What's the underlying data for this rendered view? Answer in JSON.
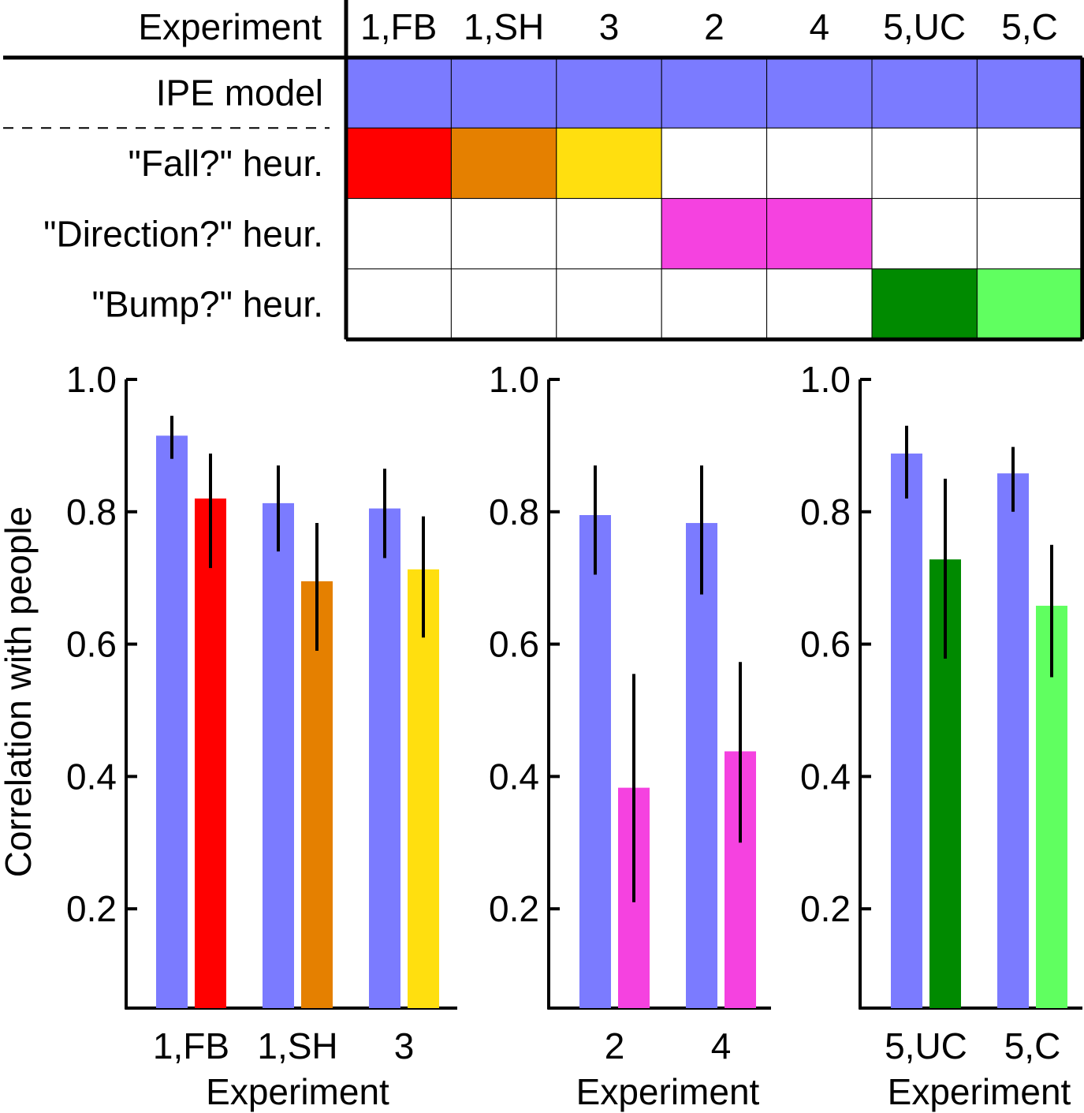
{
  "legend_table": {
    "header_label": "Experiment",
    "columns": [
      "1,FB",
      "1,SH",
      "3",
      "2",
      "4",
      "5,UC",
      "5,C"
    ],
    "rows": [
      {
        "label": "IPE model",
        "cells": [
          "#7b7bff",
          "#7b7bff",
          "#7b7bff",
          "#7b7bff",
          "#7b7bff",
          "#7b7bff",
          "#7b7bff"
        ]
      },
      {
        "label": "\"Fall?\" heur.",
        "cells": [
          "#ff0000",
          "#e58000",
          "#ffdf0f",
          "#ffffff",
          "#ffffff",
          "#ffffff",
          "#ffffff"
        ]
      },
      {
        "label": "\"Direction?\" heur.",
        "cells": [
          "#ffffff",
          "#ffffff",
          "#ffffff",
          "#f542e0",
          "#f542e0",
          "#ffffff",
          "#ffffff"
        ]
      },
      {
        "label": "\"Bump?\" heur.",
        "cells": [
          "#ffffff",
          "#ffffff",
          "#ffffff",
          "#ffffff",
          "#ffffff",
          "#008a00",
          "#60ff60"
        ]
      }
    ]
  },
  "chart_data": [
    {
      "type": "bar",
      "ylabel": "Correlation with people",
      "xlabel": "Experiment",
      "ylim": [
        0.05,
        1.0
      ],
      "yticks": [
        "1.0",
        "0.8",
        "0.6",
        "0.4",
        "0.2"
      ],
      "categories": [
        "1,FB",
        "1,SH",
        "3"
      ],
      "series": [
        {
          "values": [
            0.915,
            0.813,
            0.805
          ],
          "err_low": [
            0.88,
            0.74,
            0.73
          ],
          "err_high": [
            0.945,
            0.87,
            0.865
          ],
          "colors": [
            "#7b7bff",
            "#7b7bff",
            "#7b7bff"
          ]
        },
        {
          "values": [
            0.82,
            0.695,
            0.713
          ],
          "err_low": [
            0.715,
            0.59,
            0.61
          ],
          "err_high": [
            0.888,
            0.783,
            0.793
          ],
          "colors": [
            "#ff0000",
            "#e58000",
            "#ffdf0f"
          ]
        }
      ]
    },
    {
      "type": "bar",
      "ylabel": "",
      "xlabel": "Experiment",
      "ylim": [
        0.05,
        1.0
      ],
      "yticks": [
        "1.0",
        "0.8",
        "0.6",
        "0.4",
        "0.2"
      ],
      "categories": [
        "2",
        "4"
      ],
      "series": [
        {
          "values": [
            0.795,
            0.783
          ],
          "err_low": [
            0.705,
            0.675
          ],
          "err_high": [
            0.87,
            0.87
          ],
          "colors": [
            "#7b7bff",
            "#7b7bff"
          ]
        },
        {
          "values": [
            0.383,
            0.438
          ],
          "err_low": [
            0.21,
            0.3
          ],
          "err_high": [
            0.555,
            0.573
          ],
          "colors": [
            "#f542e0",
            "#f542e0"
          ]
        }
      ]
    },
    {
      "type": "bar",
      "ylabel": "",
      "xlabel": "Experiment",
      "ylim": [
        0.05,
        1.0
      ],
      "yticks": [
        "1.0",
        "0.8",
        "0.6",
        "0.4",
        "0.2"
      ],
      "categories": [
        "5,UC",
        "5,C"
      ],
      "series": [
        {
          "values": [
            0.888,
            0.858
          ],
          "err_low": [
            0.82,
            0.8
          ],
          "err_high": [
            0.93,
            0.898
          ],
          "colors": [
            "#7b7bff",
            "#7b7bff"
          ]
        },
        {
          "values": [
            0.728,
            0.658
          ],
          "err_low": [
            0.578,
            0.55
          ],
          "err_high": [
            0.85,
            0.75
          ],
          "colors": [
            "#008a00",
            "#60ff60"
          ]
        }
      ]
    }
  ]
}
